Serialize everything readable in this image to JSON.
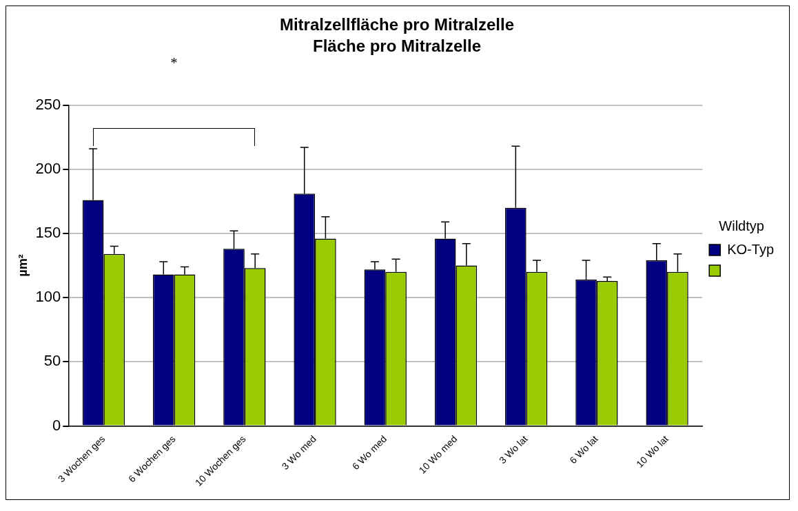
{
  "chart_data": {
    "type": "bar",
    "title": "Mitralzellfläche pro Mitralzelle",
    "subtitle": "Fläche pro Mitralzelle",
    "ylabel": "µm²",
    "categories": [
      "3 Wochen ges",
      "6 Wochen ges",
      "10 Wochen ges",
      "3 Wo med",
      "6 Wo med",
      "10 Wo med",
      "3 Wo lat",
      "6 Wo lat",
      "10 Wo lat"
    ],
    "series": [
      {
        "name": "KO-Typ",
        "color": "#000080",
        "values": [
          176,
          118,
          138,
          181,
          122,
          146,
          170,
          114,
          129
        ],
        "errors": [
          [
            176,
            216
          ],
          [
            118,
            128
          ],
          [
            138,
            152
          ],
          [
            181,
            217
          ],
          [
            122,
            128
          ],
          [
            146,
            159
          ],
          [
            170,
            218
          ],
          [
            114,
            129
          ],
          [
            129,
            142
          ]
        ]
      },
      {
        "color": "#99cc00",
        "values": [
          134,
          118,
          123,
          146,
          120,
          125,
          120,
          113,
          120
        ],
        "errors": [
          [
            134,
            140
          ],
          [
            118,
            124
          ],
          [
            123,
            134
          ],
          [
            146,
            163
          ],
          [
            120,
            130
          ],
          [
            125,
            142
          ],
          [
            120,
            129
          ],
          [
            113,
            116
          ],
          [
            120,
            134
          ]
        ]
      }
    ],
    "ylim": [
      0,
      250
    ],
    "yticks": [
      0,
      50,
      100,
      150,
      200,
      250
    ],
    "grid": "y",
    "legend": "right",
    "legend_title": "Wildtyp",
    "annotations": [
      "*"
    ]
  }
}
